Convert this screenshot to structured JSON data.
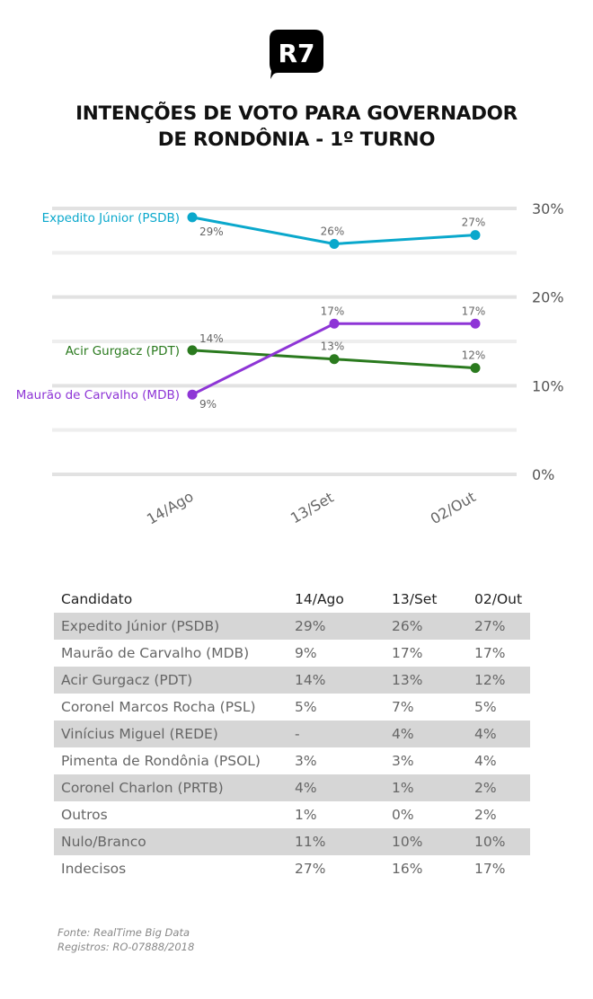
{
  "brand": {
    "logo_text": "R7",
    "logo_bg": "#000000",
    "logo_fg": "#ffffff"
  },
  "title": {
    "line1": "INTENÇÕES DE VOTO PARA GOVERNADOR",
    "line2": "DE RONDÔNIA - 1º TURNO"
  },
  "chart_data": {
    "type": "line",
    "title": "INTENÇÕES DE VOTO PARA GOVERNADOR DE RONDÔNIA - 1º TURNO",
    "xlabel": "",
    "ylabel": "",
    "x": [
      "14/Ago",
      "13/Set",
      "02/Out"
    ],
    "ylim": [
      0,
      30
    ],
    "yticks": [
      0,
      10,
      20,
      30
    ],
    "ytick_labels": [
      "0%",
      "10%",
      "20%",
      "30%"
    ],
    "gridlines": [
      0,
      5,
      10,
      15,
      20,
      25,
      30
    ],
    "grid": true,
    "legend": "inline-left",
    "series": [
      {
        "name": "Expedito Júnior (PSDB)",
        "color": "#0aa8cc",
        "values": [
          29,
          26,
          27
        ],
        "labels": [
          "29%",
          "26%",
          "27%"
        ]
      },
      {
        "name": "Acir Gurgacz (PDT)",
        "color": "#2a7a1e",
        "values": [
          14,
          13,
          12
        ],
        "labels": [
          "14%",
          "13%",
          "12%"
        ]
      },
      {
        "name": "Maurão de Carvalho (MDB)",
        "color": "#8e35d6",
        "values": [
          9,
          17,
          17
        ],
        "labels": [
          "9%",
          "17%",
          "17%"
        ]
      }
    ]
  },
  "table": {
    "headers": [
      "Candidato",
      "14/Ago",
      "13/Set",
      "02/Out"
    ],
    "rows": [
      [
        "Expedito Júnior (PSDB)",
        "29%",
        "26%",
        "27%"
      ],
      [
        "Maurão de Carvalho (MDB)",
        "9%",
        "17%",
        "17%"
      ],
      [
        "Acir Gurgacz (PDT)",
        "14%",
        "13%",
        "12%"
      ],
      [
        "Coronel Marcos Rocha (PSL)",
        "5%",
        "7%",
        "5%"
      ],
      [
        "Vinícius Miguel (REDE)",
        "-",
        "4%",
        "4%"
      ],
      [
        "Pimenta de Rondônia (PSOL)",
        "3%",
        "3%",
        "4%"
      ],
      [
        "Coronel Charlon (PRTB)",
        "4%",
        "1%",
        "2%"
      ],
      [
        "Outros",
        "1%",
        "0%",
        "2%"
      ],
      [
        "Nulo/Branco",
        "11%",
        "10%",
        "10%"
      ],
      [
        "Indecisos",
        "27%",
        "16%",
        "17%"
      ]
    ]
  },
  "footer": {
    "source": "Fonte: RealTime Big Data",
    "registry": "Registros: RO-07888/2018"
  }
}
